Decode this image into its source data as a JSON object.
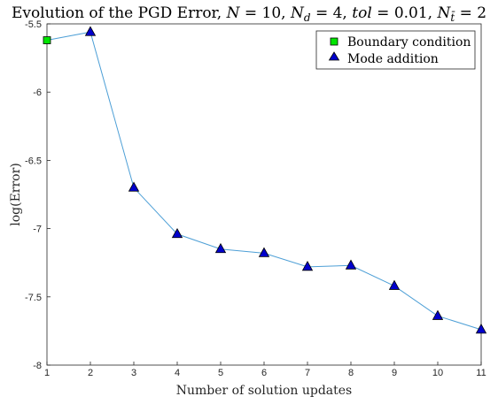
{
  "chart_data": {
    "type": "line",
    "title": "Evolution of the PGD Error, N = 10, N_d = 4, tol = 0.01, N_t̄ = 2",
    "title_parts": {
      "prefix": "Evolution of the PGD Error, ",
      "N_sym": "N",
      "N_val": " = 10, ",
      "Nd_sym": "N",
      "Nd_sub": "d",
      "Nd_val": " = 4, ",
      "tol_sym": "tol",
      "tol_val": " = 0.01, ",
      "Nt_sym": "N",
      "Nt_sub": "t̄",
      "Nt_val": " = 2"
    },
    "xlabel": "Number of solution updates",
    "ylabel": "log(Error)",
    "xlim": [
      1,
      11
    ],
    "ylim": [
      -8,
      -5.5
    ],
    "xticks": [
      1,
      2,
      3,
      4,
      5,
      6,
      7,
      8,
      9,
      10,
      11
    ],
    "xtick_labels": [
      "1",
      "2",
      "3",
      "4",
      "5",
      "6",
      "7",
      "8",
      "9",
      "10",
      "11"
    ],
    "yticks": [
      -5.5,
      -6,
      -6.5,
      -7,
      -7.5,
      -8
    ],
    "ytick_labels": [
      "-5.5",
      "-6",
      "-6.5",
      "-7",
      "-7.5",
      "-8"
    ],
    "grid": false,
    "legend_position": "top-right",
    "line": {
      "x": [
        1,
        2,
        3,
        4,
        5,
        6,
        7,
        8,
        9,
        10,
        11
      ],
      "y": [
        -5.62,
        -5.56,
        -6.7,
        -7.04,
        -7.15,
        -7.18,
        -7.28,
        -7.27,
        -7.42,
        -7.64,
        -7.74
      ],
      "color": "#4d9fd6"
    },
    "series": [
      {
        "name": "Boundary condition",
        "marker": "square",
        "color": "#00e600",
        "x": [
          1
        ],
        "y": [
          -5.62
        ]
      },
      {
        "name": "Mode addition",
        "marker": "triangle",
        "color": "#0000cc",
        "x": [
          2,
          3,
          4,
          5,
          6,
          7,
          8,
          9,
          10,
          11
        ],
        "y": [
          -5.56,
          -6.7,
          -7.04,
          -7.15,
          -7.18,
          -7.28,
          -7.27,
          -7.42,
          -7.64,
          -7.74
        ]
      }
    ]
  }
}
